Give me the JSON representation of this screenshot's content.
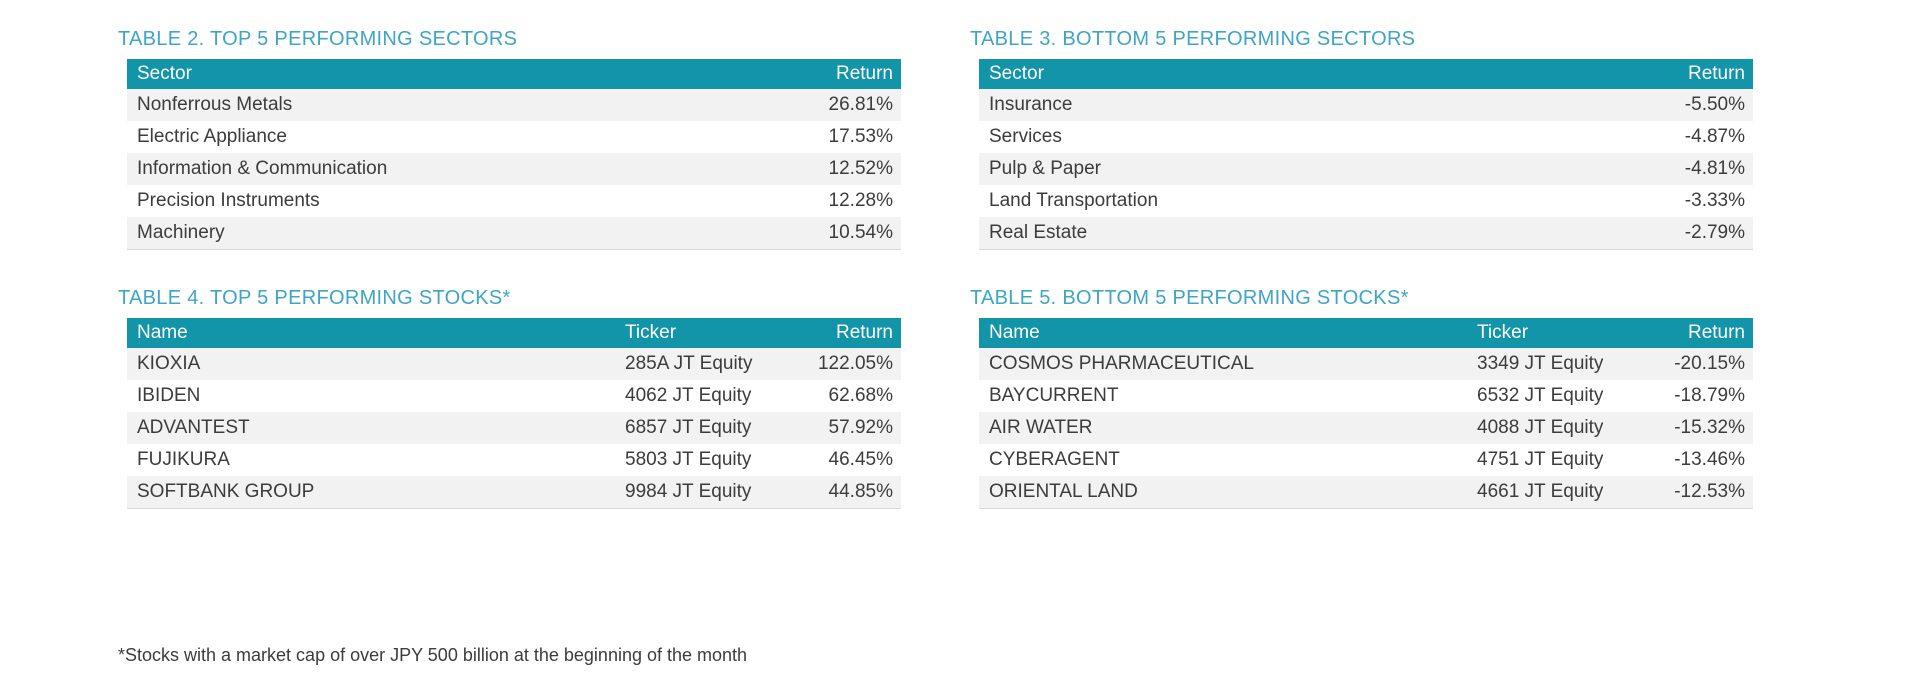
{
  "colors": {
    "header_bg": "#1294A9",
    "title": "#3DA5C6",
    "row_alt": "#F2F2F2",
    "text": "#3C3C3C",
    "header_text": "#FFFFFF",
    "table_border": "#D9D9D9"
  },
  "tables": {
    "top_sectors": {
      "title": "TABLE 2. TOP 5 PERFORMING SECTORS",
      "columns": [
        "Sector",
        "Return"
      ],
      "rows": [
        [
          "Nonferrous Metals",
          "26.81%"
        ],
        [
          "Electric Appliance",
          "17.53%"
        ],
        [
          "Information & Communication",
          "12.52%"
        ],
        [
          "Precision Instruments",
          "12.28%"
        ],
        [
          "Machinery",
          "10.54%"
        ]
      ]
    },
    "bottom_sectors": {
      "title": "TABLE 3. BOTTOM 5 PERFORMING SECTORS",
      "columns": [
        "Sector",
        "Return"
      ],
      "rows": [
        [
          "Insurance",
          "-5.50%"
        ],
        [
          "Services",
          "-4.87%"
        ],
        [
          "Pulp & Paper",
          "-4.81%"
        ],
        [
          "Land Transportation",
          "-3.33%"
        ],
        [
          "Real Estate",
          "-2.79%"
        ]
      ]
    },
    "top_stocks": {
      "title": "TABLE 4. TOP 5 PERFORMING STOCKS*",
      "columns": [
        "Name",
        "Ticker",
        "Return"
      ],
      "rows": [
        [
          "KIOXIA",
          "285A JT Equity",
          "122.05%"
        ],
        [
          "IBIDEN",
          "4062 JT Equity",
          "62.68%"
        ],
        [
          "ADVANTEST",
          "6857 JT Equity",
          "57.92%"
        ],
        [
          "FUJIKURA",
          "5803 JT Equity",
          "46.45%"
        ],
        [
          "SOFTBANK GROUP",
          "9984 JT Equity",
          "44.85%"
        ]
      ]
    },
    "bottom_stocks": {
      "title": "TABLE 5. BOTTOM 5 PERFORMING STOCKS*",
      "columns": [
        "Name",
        "Ticker",
        "Return"
      ],
      "rows": [
        [
          "COSMOS PHARMACEUTICAL",
          "3349 JT Equity",
          "-20.15%"
        ],
        [
          "BAYCURRENT",
          "6532 JT Equity",
          "-18.79%"
        ],
        [
          "AIR WATER",
          "4088 JT Equity",
          "-15.32%"
        ],
        [
          "CYBERAGENT",
          "4751 JT Equity",
          "-13.46%"
        ],
        [
          "ORIENTAL LAND",
          "4661 JT Equity",
          "-12.53%"
        ]
      ]
    }
  },
  "footnote": "*Stocks with a market cap of over JPY 500 billion at the beginning of the month"
}
